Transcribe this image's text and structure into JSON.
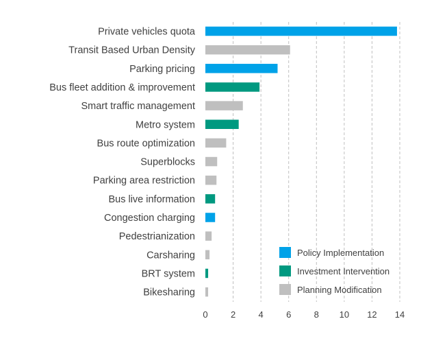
{
  "chart_data": {
    "type": "bar",
    "orientation": "horizontal",
    "xlim": [
      0,
      14
    ],
    "x_ticks": [
      0,
      2,
      4,
      6,
      8,
      10,
      12,
      14
    ],
    "grid": "vertical dashed",
    "legend_position": "bottom-right",
    "categories": [
      "Private vehicles quota",
      "Transit Based Urban Density",
      "Parking pricing",
      "Bus fleet addition & improvement",
      "Smart traffic management",
      "Metro system",
      "Bus route optimization",
      "Superblocks",
      "Parking area restriction",
      "Bus live information",
      "Congestion charging",
      "Pedestrianization",
      "Carsharing",
      "BRT system",
      "Bikesharing"
    ],
    "values": [
      13.8,
      6.1,
      5.2,
      3.9,
      2.7,
      2.4,
      1.5,
      0.85,
      0.8,
      0.7,
      0.7,
      0.45,
      0.3,
      0.2,
      0.2
    ],
    "groups": [
      "Policy Implementation",
      "Planning Modification",
      "Policy Implementation",
      "Investment Intervention",
      "Planning Modification",
      "Investment Intervention",
      "Planning Modification",
      "Planning Modification",
      "Planning Modification",
      "Investment Intervention",
      "Policy Implementation",
      "Planning Modification",
      "Planning Modification",
      "Investment Intervention",
      "Planning Modification"
    ],
    "legend": [
      {
        "name": "Policy Implementation",
        "color": "#00a2e8"
      },
      {
        "name": "Investment Intervention",
        "color": "#009980"
      },
      {
        "name": "Planning Modification",
        "color": "#bfbfbf"
      }
    ],
    "grid_color": "#bfbfbf",
    "text_color": "#404040"
  }
}
